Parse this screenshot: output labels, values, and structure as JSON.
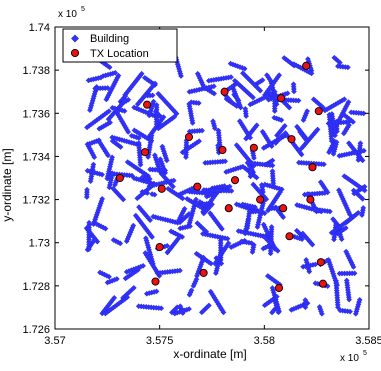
{
  "chart_data": {
    "type": "scatter",
    "title": "",
    "xlabel": "x-ordinate [m]",
    "ylabel": "y-ordinate [m]",
    "x_multiplier_label": {
      "base": "x 10",
      "exponent": "5"
    },
    "y_multiplier_label": {
      "base": "x 10",
      "exponent": "5"
    },
    "xlim": [
      3.57,
      3.585
    ],
    "ylim": [
      1.726,
      1.74
    ],
    "x_ticks": [
      "3.57",
      "3.575",
      "3.58",
      "3.585"
    ],
    "x_tick_values": [
      3.57,
      3.575,
      3.58,
      3.585
    ],
    "y_ticks": [
      "1.726",
      "1.728",
      "1.73",
      "1.732",
      "1.734",
      "1.736",
      "1.738",
      "1.74"
    ],
    "y_tick_values": [
      1.726,
      1.728,
      1.73,
      1.732,
      1.734,
      1.736,
      1.738,
      1.74
    ],
    "grid": false,
    "legend_position": "top-left",
    "series": [
      {
        "name": "Building",
        "marker": "diamond",
        "color": "#3333ff",
        "generated_density_pattern": true,
        "x_range": [
          3.5715,
          3.5848
        ],
        "y_range": [
          1.7267,
          1.7386
        ]
      },
      {
        "name": "TX Location",
        "marker": "circle",
        "color": "#ee1111",
        "x": [
          3.582,
          3.5781,
          3.5808,
          3.5826,
          3.5744,
          3.5764,
          3.578,
          3.5795,
          3.5813,
          3.5743,
          3.5731,
          3.5751,
          3.5768,
          3.5786,
          3.5823,
          3.5783,
          3.5798,
          3.5809,
          3.5822,
          3.5812,
          3.575,
          3.5771,
          3.5748,
          3.5827,
          3.5828,
          3.5807
        ],
        "y": [
          1.7382,
          1.737,
          1.7367,
          1.7361,
          1.7364,
          1.7349,
          1.7343,
          1.7344,
          1.7348,
          1.7342,
          1.733,
          1.7325,
          1.7326,
          1.7329,
          1.7335,
          1.7316,
          1.732,
          1.7316,
          1.732,
          1.7303,
          1.7298,
          1.7286,
          1.7282,
          1.7291,
          1.7281,
          1.7279
        ]
      }
    ]
  }
}
